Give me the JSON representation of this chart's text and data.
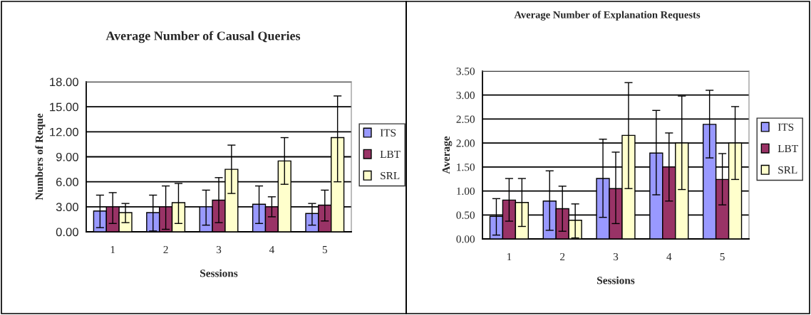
{
  "chart_data": [
    {
      "type": "bar",
      "title": "Average Number of Causal Queries",
      "xlabel": "Sessions",
      "ylabel": "Numbers of Reque",
      "categories": [
        "1",
        "2",
        "3",
        "4",
        "5"
      ],
      "ylim": [
        0,
        18
      ],
      "yticks": [
        {
          "value": 0,
          "label": "0.00"
        },
        {
          "value": 3,
          "label": "3.00"
        },
        {
          "value": 6,
          "label": "6.00"
        },
        {
          "value": 9,
          "label": "9.00"
        },
        {
          "value": 12,
          "label": "12.00"
        },
        {
          "value": 15,
          "label": "15.00"
        },
        {
          "value": 18,
          "label": "18.00"
        }
      ],
      "grid": "y",
      "legend": "right",
      "series": [
        {
          "name": "ITS",
          "color": "#9999ff",
          "values": [
            2.5,
            2.3,
            3.0,
            3.3,
            2.2
          ],
          "errors": [
            [
              0.5,
              4.4
            ],
            [
              0.1,
              4.4
            ],
            [
              0.8,
              5.0
            ],
            [
              1.0,
              5.5
            ],
            [
              0.8,
              3.4
            ]
          ]
        },
        {
          "name": "LBT",
          "color": "#993366",
          "values": [
            3.0,
            3.0,
            3.8,
            3.0,
            3.2
          ],
          "errors": [
            [
              1.0,
              4.7
            ],
            [
              0.3,
              5.5
            ],
            [
              1.1,
              6.5
            ],
            [
              1.8,
              4.2
            ],
            [
              1.3,
              5.0
            ]
          ]
        },
        {
          "name": "SRL",
          "color": "#ffffcc",
          "values": [
            2.3,
            3.5,
            7.5,
            8.5,
            11.3
          ],
          "errors": [
            [
              1.1,
              3.4
            ],
            [
              1.0,
              5.8
            ],
            [
              4.6,
              10.4
            ],
            [
              5.7,
              11.3
            ],
            [
              6.0,
              16.3
            ]
          ]
        }
      ]
    },
    {
      "type": "bar",
      "title": "Average Number of Explanation Requests",
      "xlabel": "Sessions",
      "ylabel": "Average",
      "categories": [
        "1",
        "2",
        "3",
        "4",
        "5"
      ],
      "ylim": [
        0,
        3.5
      ],
      "yticks": [
        {
          "value": 0,
          "label": "0.00"
        },
        {
          "value": 0.5,
          "label": "0.50"
        },
        {
          "value": 1,
          "label": "1.00"
        },
        {
          "value": 1.5,
          "label": "1.50"
        },
        {
          "value": 2,
          "label": "2.00"
        },
        {
          "value": 2.5,
          "label": "2.50"
        },
        {
          "value": 3,
          "label": "3.00"
        },
        {
          "value": 3.5,
          "label": "3.50"
        }
      ],
      "grid": "y",
      "legend": "right",
      "series": [
        {
          "name": "ITS",
          "color": "#9999ff",
          "values": [
            0.47,
            0.79,
            1.26,
            1.79,
            2.39
          ],
          "errors": [
            [
              0.08,
              0.84
            ],
            [
              0.18,
              1.42
            ],
            [
              0.45,
              2.08
            ],
            [
              0.92,
              2.68
            ],
            [
              1.69,
              3.1
            ]
          ]
        },
        {
          "name": "LBT",
          "color": "#993366",
          "values": [
            0.81,
            0.63,
            1.05,
            1.5,
            1.24
          ],
          "errors": [
            [
              0.37,
              1.26
            ],
            [
              0.16,
              1.1
            ],
            [
              0.32,
              1.81
            ],
            [
              0.79,
              2.21
            ],
            [
              0.71,
              1.78
            ]
          ]
        },
        {
          "name": "SRL",
          "color": "#ffffcc",
          "values": [
            0.76,
            0.39,
            2.16,
            2.0,
            2.0
          ],
          "errors": [
            [
              0.26,
              1.26
            ],
            [
              0.02,
              0.73
            ],
            [
              1.05,
              3.26
            ],
            [
              1.03,
              2.98
            ],
            [
              1.24,
              2.76
            ]
          ]
        }
      ]
    }
  ]
}
